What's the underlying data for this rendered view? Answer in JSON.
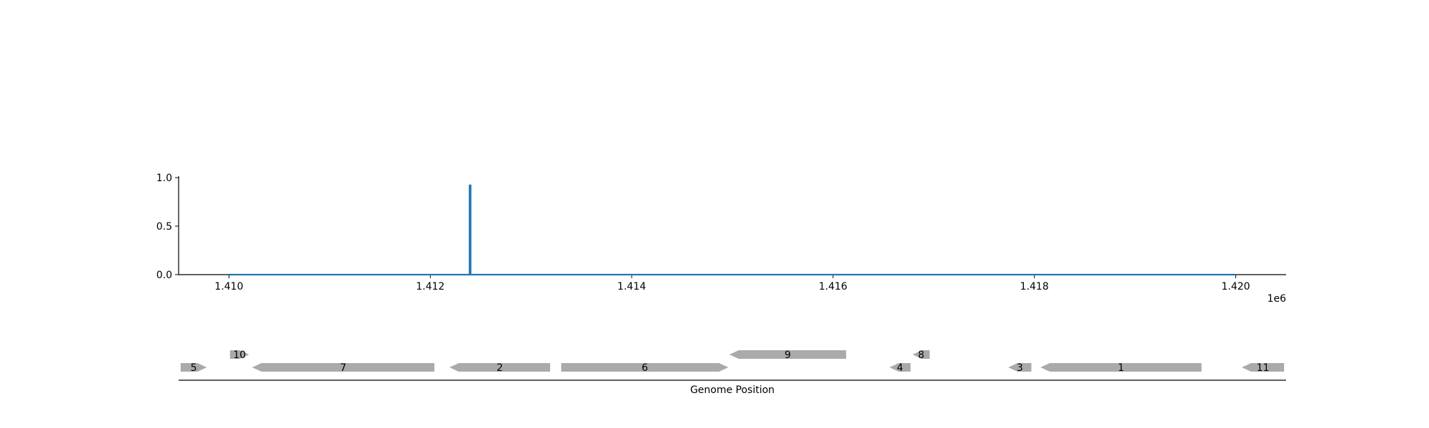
{
  "chart_data": [
    {
      "type": "line",
      "title": "",
      "xlabel": "",
      "ylabel": "",
      "x_offset_label": "1e6",
      "xlim": [
        1409500,
        1420500
      ],
      "ylim": [
        0,
        1.0
      ],
      "x_ticks": [
        1410000,
        1412000,
        1414000,
        1416000,
        1418000,
        1420000
      ],
      "x_tick_labels": [
        "1.410",
        "1.412",
        "1.414",
        "1.416",
        "1.418",
        "1.420"
      ],
      "y_ticks": [
        0,
        0.5,
        1.0
      ],
      "y_tick_labels": [
        "0.0",
        "0.5",
        "1.0"
      ],
      "grid": false,
      "line_color": "#1f77b4",
      "series": [
        {
          "x": [
            1410000,
            1412390,
            1412390,
            1412400,
            1412400,
            1420000
          ],
          "y": [
            0,
            0,
            0.92,
            0.92,
            0,
            0
          ]
        }
      ]
    },
    {
      "type": "gene-track",
      "xlabel": "Genome Position",
      "xlim": [
        1409500,
        1420500
      ],
      "feature_color": "#aaaaaa",
      "genes": [
        {
          "label": "5",
          "start": 1409520,
          "end": 1409780,
          "strand": "+",
          "row": 0
        },
        {
          "label": "10",
          "start": 1410010,
          "end": 1410200,
          "strand": "+",
          "row": 1
        },
        {
          "label": "7",
          "start": 1410230,
          "end": 1412040,
          "strand": "-",
          "row": 0
        },
        {
          "label": "2",
          "start": 1412190,
          "end": 1413190,
          "strand": "-",
          "row": 0
        },
        {
          "label": "6",
          "start": 1413300,
          "end": 1414960,
          "strand": "+",
          "row": 0
        },
        {
          "label": "9",
          "start": 1414970,
          "end": 1416130,
          "strand": "-",
          "row": 1
        },
        {
          "label": "4",
          "start": 1416560,
          "end": 1416770,
          "strand": "-",
          "row": 0
        },
        {
          "label": "8",
          "start": 1416790,
          "end": 1416960,
          "strand": "-",
          "row": 1
        },
        {
          "label": "3",
          "start": 1417740,
          "end": 1417970,
          "strand": "-",
          "row": 0
        },
        {
          "label": "1",
          "start": 1418060,
          "end": 1419660,
          "strand": "-",
          "row": 0
        },
        {
          "label": "11",
          "start": 1420060,
          "end": 1420480,
          "strand": "-",
          "row": 0
        }
      ]
    }
  ]
}
